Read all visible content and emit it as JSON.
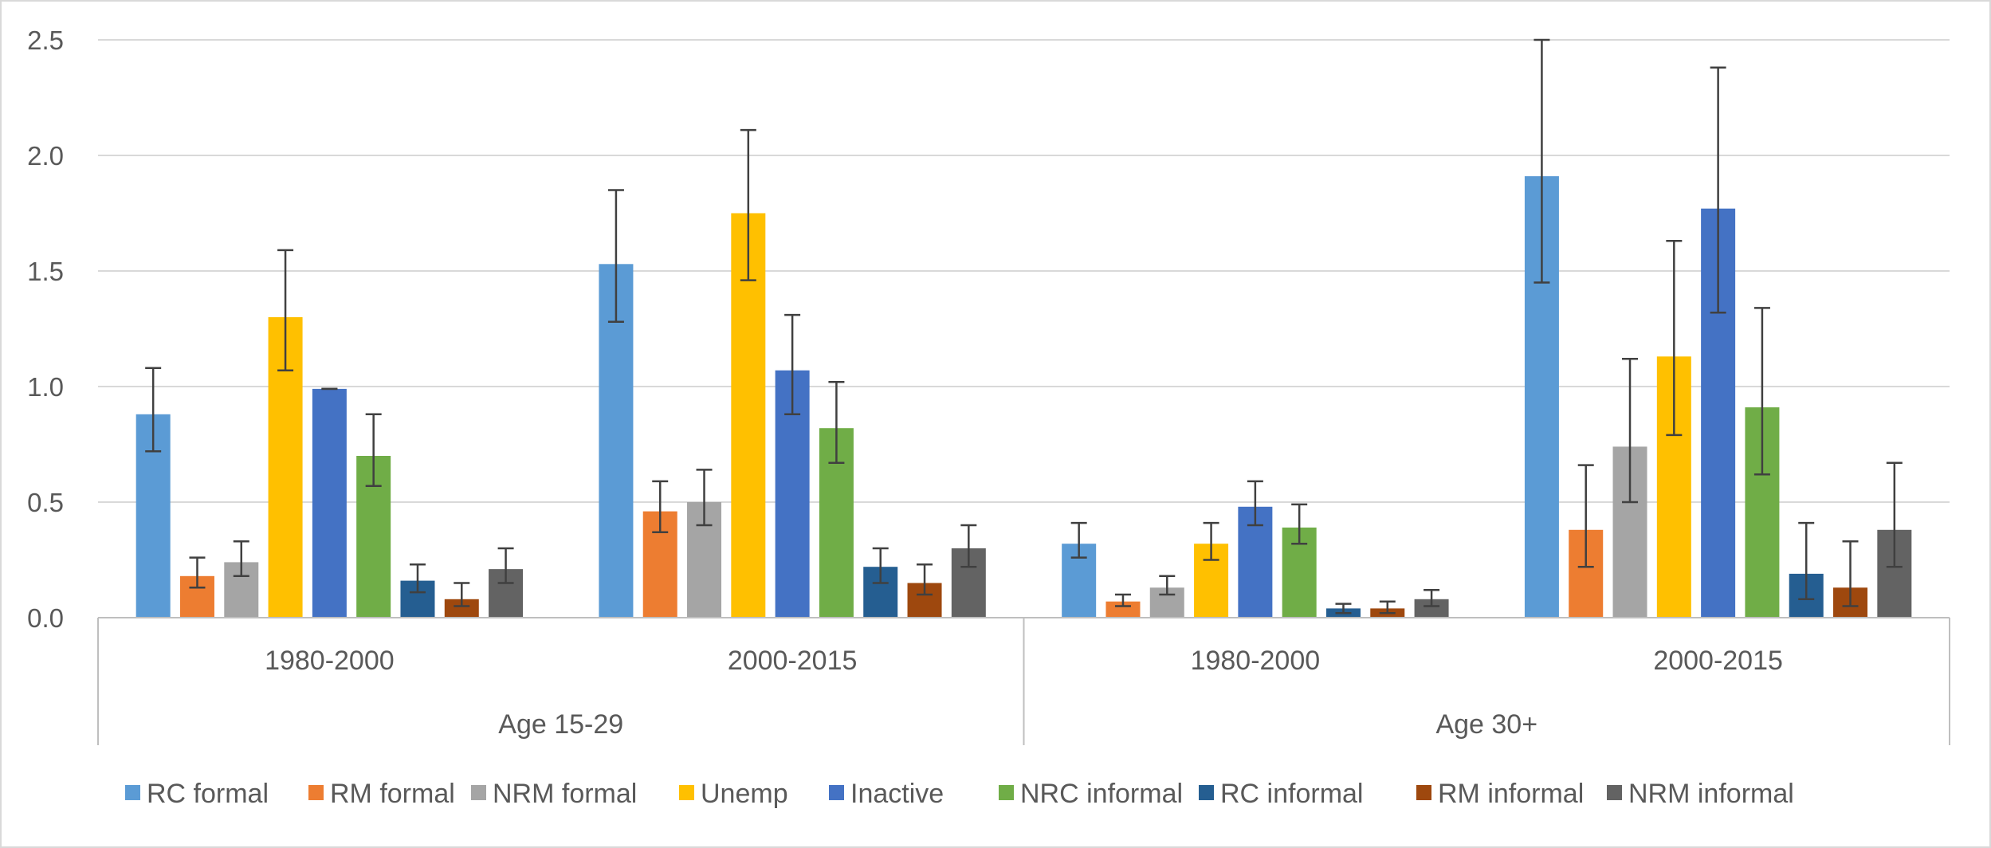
{
  "chart_data": {
    "type": "bar",
    "title": "",
    "xlabel": "",
    "ylabel": "",
    "ylim": [
      0,
      2.5
    ],
    "yticks": [
      "0.0",
      "0.5",
      "1.0",
      "1.5",
      "2.0",
      "2.5"
    ],
    "grid": true,
    "legend_position": "bottom",
    "groups": [
      {
        "label": "Age 15-29",
        "periods": [
          "1980-2000",
          "2000-2015"
        ]
      },
      {
        "label": "Age 30+",
        "periods": [
          "1980-2000",
          "2000-2015"
        ]
      }
    ],
    "categories": [
      "Age 15-29 | 1980-2000",
      "Age 15-29 | 2000-2015",
      "Age 30+ | 1980-2000",
      "Age 30+ | 2000-2015"
    ],
    "series": [
      {
        "name": "RC formal",
        "color": "#5B9BD5",
        "values": [
          0.88,
          1.53,
          0.32,
          1.91
        ],
        "err_low": [
          0.72,
          1.28,
          0.26,
          1.45
        ],
        "err_high": [
          1.08,
          1.85,
          0.41,
          2.5
        ]
      },
      {
        "name": "RM formal",
        "color": "#ED7D31",
        "values": [
          0.18,
          0.46,
          0.07,
          0.38
        ],
        "err_low": [
          0.13,
          0.37,
          0.05,
          0.22
        ],
        "err_high": [
          0.26,
          0.59,
          0.1,
          0.66
        ]
      },
      {
        "name": "NRM formal",
        "color": "#A5A5A5",
        "values": [
          0.24,
          0.5,
          0.13,
          0.74
        ],
        "err_low": [
          0.18,
          0.4,
          0.1,
          0.5
        ],
        "err_high": [
          0.33,
          0.64,
          0.18,
          1.12
        ]
      },
      {
        "name": "Unemp",
        "color": "#FFC000",
        "values": [
          1.3,
          1.75,
          0.32,
          1.13
        ],
        "err_low": [
          1.07,
          1.46,
          0.25,
          0.79
        ],
        "err_high": [
          1.59,
          2.11,
          0.41,
          1.63
        ]
      },
      {
        "name": "Inactive",
        "color": "#4472C4",
        "values": [
          0.99,
          1.07,
          0.48,
          1.77
        ],
        "err_low": [
          0.99,
          0.88,
          0.4,
          1.32
        ],
        "err_high": [
          0.99,
          1.31,
          0.59,
          2.38
        ]
      },
      {
        "name": "NRC informal",
        "color": "#70AD47",
        "values": [
          0.7,
          0.82,
          0.39,
          0.91
        ],
        "err_low": [
          0.57,
          0.67,
          0.32,
          0.62
        ],
        "err_high": [
          0.88,
          1.02,
          0.49,
          1.34
        ]
      },
      {
        "name": "RC informal",
        "color": "#255E91",
        "values": [
          0.16,
          0.22,
          0.04,
          0.19
        ],
        "err_low": [
          0.11,
          0.15,
          0.02,
          0.08
        ],
        "err_high": [
          0.23,
          0.3,
          0.06,
          0.41
        ]
      },
      {
        "name": "RM informal",
        "color": "#9E480E",
        "values": [
          0.08,
          0.15,
          0.04,
          0.13
        ],
        "err_low": [
          0.05,
          0.1,
          0.02,
          0.05
        ],
        "err_high": [
          0.15,
          0.23,
          0.07,
          0.33
        ]
      },
      {
        "name": "NRM informal",
        "color": "#636363",
        "values": [
          0.21,
          0.3,
          0.08,
          0.38
        ],
        "err_low": [
          0.15,
          0.22,
          0.05,
          0.22
        ],
        "err_high": [
          0.3,
          0.4,
          0.12,
          0.67
        ]
      }
    ]
  }
}
